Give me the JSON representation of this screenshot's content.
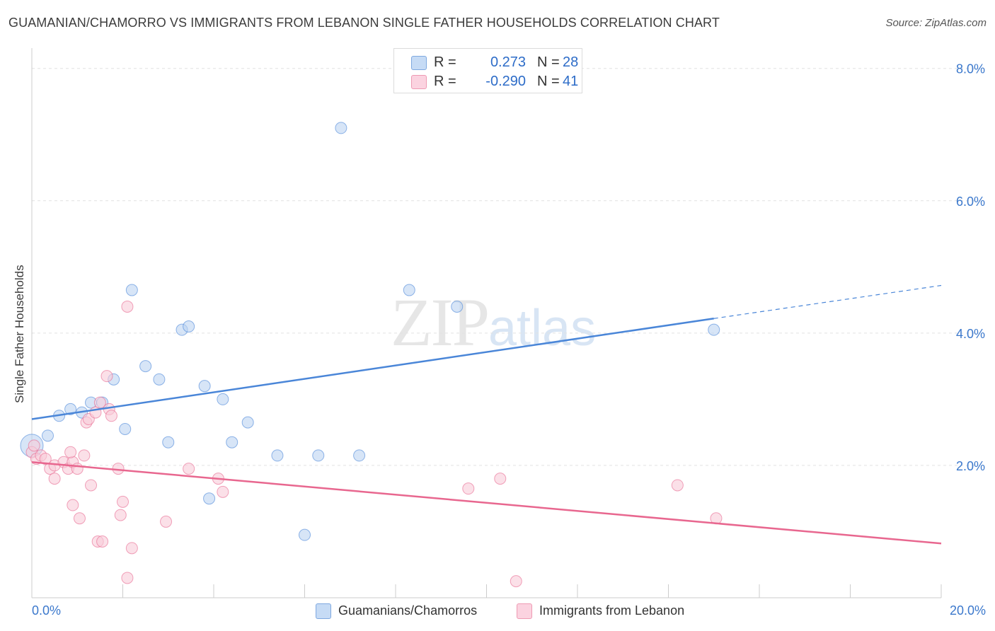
{
  "header": {
    "title": "GUAMANIAN/CHAMORRO VS IMMIGRANTS FROM LEBANON SINGLE FATHER HOUSEHOLDS CORRELATION CHART",
    "source": "Source: ZipAtlas.com"
  },
  "watermark": {
    "zip": "ZIP",
    "atlas": "atlas"
  },
  "legend": {
    "rows": [
      {
        "label": "R =",
        "r": "0.273",
        "n_label": "N =",
        "n": "28",
        "color": "#a9c8ee"
      },
      {
        "label": "R =",
        "r": "-0.290",
        "n_label": "N =",
        "n": "41",
        "color": "#f6b8ca"
      }
    ]
  },
  "bottom_legend": {
    "items": [
      {
        "label": "Guamanians/Chamorros",
        "color": "#a9c8ee"
      },
      {
        "label": "Immigrants from Lebanon",
        "color": "#f6b8ca"
      }
    ]
  },
  "chart_data": {
    "type": "scatter",
    "title": "GUAMANIAN/CHAMORRO VS IMMIGRANTS FROM LEBANON SINGLE FATHER HOUSEHOLDS CORRELATION CHART",
    "xlabel": "",
    "ylabel": "Single Father Households",
    "xlim": [
      0,
      20
    ],
    "ylim": [
      0,
      8
    ],
    "x_tick_labels": [
      "0.0%",
      "20.0%"
    ],
    "y_ticks": [
      2,
      4,
      6,
      8
    ],
    "y_tick_labels": [
      "2.0%",
      "4.0%",
      "6.0%",
      "8.0%"
    ],
    "grid": true,
    "legend_position": "top-center",
    "series": [
      {
        "name": "Guamanians/Chamorros",
        "color": "#4a86d8",
        "fill": "#bcd4f2",
        "points": [
          [
            0.0,
            2.3
          ],
          [
            0.35,
            2.45
          ],
          [
            0.6,
            2.75
          ],
          [
            0.85,
            2.85
          ],
          [
            1.1,
            2.8
          ],
          [
            1.3,
            2.95
          ],
          [
            1.55,
            2.95
          ],
          [
            1.8,
            3.3
          ],
          [
            2.05,
            2.55
          ],
          [
            2.2,
            4.65
          ],
          [
            2.5,
            3.5
          ],
          [
            2.8,
            3.3
          ],
          [
            3.0,
            2.35
          ],
          [
            3.3,
            4.05
          ],
          [
            3.45,
            4.1
          ],
          [
            3.8,
            3.2
          ],
          [
            3.9,
            1.5
          ],
          [
            4.2,
            3.0
          ],
          [
            4.4,
            2.35
          ],
          [
            4.75,
            2.65
          ],
          [
            5.4,
            2.15
          ],
          [
            6.0,
            0.95
          ],
          [
            6.3,
            2.15
          ],
          [
            6.8,
            7.1
          ],
          [
            7.2,
            2.15
          ],
          [
            8.3,
            4.65
          ],
          [
            9.35,
            4.4
          ],
          [
            15.0,
            4.05
          ]
        ],
        "trend": {
          "x": [
            0,
            15.0
          ],
          "y": [
            2.7,
            4.22
          ],
          "dashed_extension": {
            "x": [
              15.0,
              20
            ],
            "y": [
              4.22,
              4.72
            ]
          }
        }
      },
      {
        "name": "Immigrants from Lebanon",
        "color": "#e8678f",
        "fill": "#f9cbd9",
        "points": [
          [
            0.0,
            2.2
          ],
          [
            0.1,
            2.1
          ],
          [
            0.2,
            2.15
          ],
          [
            0.3,
            2.1
          ],
          [
            0.4,
            1.95
          ],
          [
            0.5,
            2.0
          ],
          [
            0.5,
            1.8
          ],
          [
            0.7,
            2.05
          ],
          [
            0.8,
            1.95
          ],
          [
            0.9,
            2.05
          ],
          [
            0.85,
            2.2
          ],
          [
            0.9,
            1.4
          ],
          [
            1.0,
            1.95
          ],
          [
            1.05,
            1.2
          ],
          [
            1.15,
            2.15
          ],
          [
            1.2,
            2.65
          ],
          [
            1.25,
            2.7
          ],
          [
            1.3,
            1.7
          ],
          [
            1.4,
            2.8
          ],
          [
            1.45,
            0.85
          ],
          [
            1.5,
            2.95
          ],
          [
            1.55,
            0.85
          ],
          [
            1.65,
            3.35
          ],
          [
            1.7,
            2.85
          ],
          [
            1.75,
            2.75
          ],
          [
            1.9,
            1.95
          ],
          [
            1.95,
            1.25
          ],
          [
            2.0,
            1.45
          ],
          [
            2.1,
            0.3
          ],
          [
            2.1,
            4.4
          ],
          [
            2.2,
            0.75
          ],
          [
            2.95,
            1.15
          ],
          [
            3.45,
            1.95
          ],
          [
            4.1,
            1.8
          ],
          [
            4.2,
            1.6
          ],
          [
            9.6,
            1.65
          ],
          [
            10.3,
            1.8
          ],
          [
            10.65,
            0.25
          ],
          [
            14.2,
            1.7
          ],
          [
            15.05,
            1.2
          ],
          [
            0.05,
            2.3
          ]
        ],
        "trend": {
          "x": [
            0,
            20
          ],
          "y": [
            2.05,
            0.82
          ]
        }
      }
    ]
  }
}
